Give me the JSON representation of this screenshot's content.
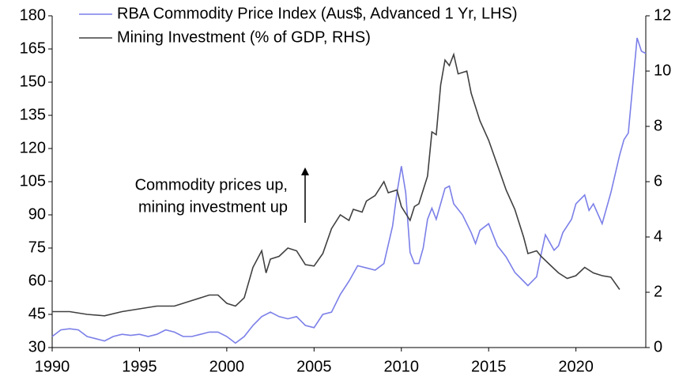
{
  "chart_data": {
    "type": "line",
    "xlim": [
      1990,
      2024
    ],
    "xticks": [
      1990,
      1995,
      2000,
      2005,
      2010,
      2015,
      2020
    ],
    "ylim": [
      30,
      180
    ],
    "yticks": [
      30,
      45,
      60,
      75,
      90,
      105,
      120,
      135,
      150,
      165,
      180
    ],
    "y2lim": [
      0,
      12
    ],
    "y2ticks": [
      0,
      2,
      4,
      6,
      8,
      10,
      12
    ],
    "annotations": [
      "Commodity prices up,",
      "mining investment up"
    ],
    "legend": "top",
    "series": [
      {
        "name": "RBA Commodity Price Index (Aus$, Advanced 1 Yr, LHS)",
        "color": "#7b7fe8",
        "x": [
          1990,
          1990.5,
          1991,
          1991.5,
          1992,
          1992.5,
          1993,
          1993.5,
          1994,
          1994.5,
          1995,
          1995.5,
          1996,
          1996.5,
          1997,
          1997.5,
          1998,
          1998.5,
          1999,
          1999.5,
          2000,
          2000.5,
          2001,
          2001.5,
          2002,
          2002.5,
          2003,
          2003.5,
          2004,
          2004.5,
          2005,
          2005.5,
          2006,
          2006.5,
          2007,
          2007.5,
          2008,
          2008.5,
          2009,
          2009.5,
          2009.75,
          2010,
          2010.25,
          2010.5,
          2010.75,
          2011,
          2011.25,
          2011.5,
          2011.75,
          2012,
          2012.5,
          2012.75,
          2013,
          2013.5,
          2014,
          2014.25,
          2014.5,
          2015,
          2015.5,
          2016,
          2016.5,
          2017,
          2017.25,
          2017.75,
          2018,
          2018.25,
          2018.75,
          2019,
          2019.25,
          2019.75,
          2020,
          2020.5,
          2020.75,
          2021,
          2021.5,
          2022,
          2022.5,
          2022.75,
          2023,
          2023.5,
          2023.75,
          2024
        ],
        "values": [
          35,
          38,
          38.5,
          38,
          35,
          34,
          33,
          35,
          36,
          35.5,
          36,
          35,
          36,
          38,
          37,
          35,
          35,
          36,
          37,
          37,
          35,
          32,
          35,
          40,
          44,
          46,
          44,
          43,
          44,
          40,
          39,
          45,
          46,
          54,
          60,
          67,
          66,
          65,
          68,
          85,
          100,
          112,
          100,
          73,
          68,
          68,
          75,
          88,
          93,
          88,
          102,
          103,
          95,
          90,
          82,
          77,
          83,
          86,
          76,
          71,
          64,
          60,
          58,
          62,
          72,
          81,
          74,
          76,
          82,
          88,
          95,
          99,
          92,
          95,
          86,
          100,
          117,
          124,
          127,
          170,
          164,
          163
        ]
      },
      {
        "name": "Mining Investment (% of GDP, RHS)",
        "color": "#404040",
        "axis": "y2",
        "x": [
          1990,
          1991,
          1992,
          1993,
          1994,
          1995,
          1996,
          1997,
          1998,
          1999,
          1999.5,
          2000,
          2000.5,
          2001,
          2001.5,
          2002,
          2002.25,
          2002.5,
          2003,
          2003.5,
          2004,
          2004.5,
          2005,
          2005.5,
          2006,
          2006.5,
          2007,
          2007.25,
          2007.75,
          2008,
          2008.5,
          2009,
          2009.25,
          2009.75,
          2010,
          2010.5,
          2010.75,
          2011,
          2011.5,
          2011.75,
          2012,
          2012.25,
          2012.5,
          2012.75,
          2013,
          2013.25,
          2013.75,
          2014,
          2014.5,
          2015,
          2015.5,
          2016,
          2016.5,
          2017,
          2017.25,
          2017.75,
          2018,
          2018.5,
          2019,
          2019.5,
          2020,
          2020.5,
          2021,
          2021.5,
          2022,
          2022.5
        ],
        "values": [
          1.3,
          1.3,
          1.2,
          1.15,
          1.3,
          1.4,
          1.5,
          1.5,
          1.7,
          1.9,
          1.9,
          1.6,
          1.5,
          1.8,
          2.9,
          3.5,
          2.7,
          3.2,
          3.3,
          3.6,
          3.5,
          3.0,
          2.95,
          3.4,
          4.3,
          4.8,
          4.6,
          5.0,
          4.9,
          5.3,
          5.5,
          6.0,
          5.6,
          5.7,
          5.1,
          4.6,
          5.1,
          5.2,
          6.2,
          7.8,
          7.7,
          9.5,
          10.4,
          10.2,
          10.6,
          9.9,
          10.0,
          9.2,
          8.2,
          7.5,
          6.6,
          5.7,
          5.0,
          4.0,
          3.4,
          3.5,
          3.3,
          3.0,
          2.7,
          2.5,
          2.6,
          2.9,
          2.7,
          2.6,
          2.55,
          2.1
        ]
      }
    ]
  }
}
